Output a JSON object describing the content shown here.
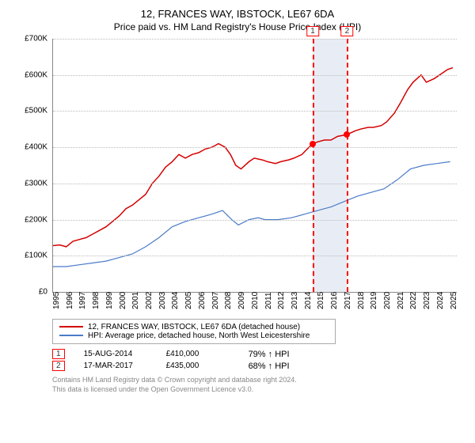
{
  "title": "12, FRANCES WAY, IBSTOCK, LE67 6DA",
  "subtitle": "Price paid vs. HM Land Registry's House Price Index (HPI)",
  "chart": {
    "type": "line",
    "background_color": "#ffffff",
    "grid_color": "#bbbbbb",
    "axis_color": "#888888",
    "label_fontsize": 10,
    "xlim": [
      1995,
      2025.5
    ],
    "ylim": [
      0,
      700000
    ],
    "ytick_step": 100000,
    "yticks": [
      "£0",
      "£100K",
      "£200K",
      "£300K",
      "£400K",
      "£500K",
      "£600K",
      "£700K"
    ],
    "xticks": [
      1995,
      1996,
      1997,
      1998,
      1999,
      2000,
      2001,
      2002,
      2003,
      2004,
      2005,
      2006,
      2007,
      2008,
      2009,
      2010,
      2011,
      2012,
      2013,
      2014,
      2015,
      2016,
      2017,
      2018,
      2019,
      2020,
      2021,
      2022,
      2023,
      2024,
      2025
    ],
    "band": {
      "start": 2014.62,
      "end": 2017.21,
      "color": "#e8edf5"
    },
    "markers": [
      {
        "label": "1",
        "x": 2014.62,
        "y": 410000
      },
      {
        "label": "2",
        "x": 2017.21,
        "y": 435000
      }
    ],
    "series": [
      {
        "name": "12, FRANCES WAY, IBSTOCK, LE67 6DA (detached house)",
        "color": "#d40000",
        "line_width": 1.5,
        "points": [
          [
            1995,
            128000
          ],
          [
            1995.5,
            130000
          ],
          [
            1996,
            125000
          ],
          [
            1996.5,
            140000
          ],
          [
            1997,
            145000
          ],
          [
            1997.5,
            150000
          ],
          [
            1998,
            160000
          ],
          [
            1998.5,
            170000
          ],
          [
            1999,
            180000
          ],
          [
            1999.5,
            195000
          ],
          [
            2000,
            210000
          ],
          [
            2000.5,
            230000
          ],
          [
            2001,
            240000
          ],
          [
            2001.5,
            255000
          ],
          [
            2002,
            270000
          ],
          [
            2002.5,
            300000
          ],
          [
            2003,
            320000
          ],
          [
            2003.5,
            345000
          ],
          [
            2004,
            360000
          ],
          [
            2004.5,
            380000
          ],
          [
            2005,
            370000
          ],
          [
            2005.5,
            380000
          ],
          [
            2006,
            385000
          ],
          [
            2006.5,
            395000
          ],
          [
            2007,
            400000
          ],
          [
            2007.5,
            410000
          ],
          [
            2008,
            400000
          ],
          [
            2008.4,
            380000
          ],
          [
            2008.8,
            350000
          ],
          [
            2009.2,
            340000
          ],
          [
            2009.8,
            360000
          ],
          [
            2010.2,
            370000
          ],
          [
            2010.8,
            365000
          ],
          [
            2011.2,
            360000
          ],
          [
            2011.8,
            355000
          ],
          [
            2012.2,
            360000
          ],
          [
            2012.8,
            365000
          ],
          [
            2013.2,
            370000
          ],
          [
            2013.8,
            380000
          ],
          [
            2014.2,
            395000
          ],
          [
            2014.62,
            410000
          ],
          [
            2015,
            415000
          ],
          [
            2015.5,
            420000
          ],
          [
            2016,
            420000
          ],
          [
            2016.5,
            430000
          ],
          [
            2017.21,
            435000
          ],
          [
            2017.8,
            445000
          ],
          [
            2018.2,
            450000
          ],
          [
            2018.8,
            455000
          ],
          [
            2019.2,
            455000
          ],
          [
            2019.8,
            460000
          ],
          [
            2020.2,
            470000
          ],
          [
            2020.8,
            495000
          ],
          [
            2021.2,
            520000
          ],
          [
            2021.8,
            560000
          ],
          [
            2022.2,
            580000
          ],
          [
            2022.8,
            600000
          ],
          [
            2023.2,
            580000
          ],
          [
            2023.8,
            590000
          ],
          [
            2024.2,
            600000
          ],
          [
            2024.8,
            615000
          ],
          [
            2025.2,
            620000
          ]
        ]
      },
      {
        "name": "HPI: Average price, detached house, North West Leicestershire",
        "color": "#4a7bc8",
        "line_width": 1.2,
        "points": [
          [
            1995,
            70000
          ],
          [
            1996,
            70000
          ],
          [
            1997,
            75000
          ],
          [
            1998,
            80000
          ],
          [
            1999,
            85000
          ],
          [
            2000,
            95000
          ],
          [
            2001,
            105000
          ],
          [
            2002,
            125000
          ],
          [
            2003,
            150000
          ],
          [
            2004,
            180000
          ],
          [
            2005,
            195000
          ],
          [
            2006,
            205000
          ],
          [
            2007,
            215000
          ],
          [
            2007.8,
            225000
          ],
          [
            2008.5,
            200000
          ],
          [
            2009,
            185000
          ],
          [
            2009.8,
            200000
          ],
          [
            2010.5,
            205000
          ],
          [
            2011,
            200000
          ],
          [
            2012,
            200000
          ],
          [
            2013,
            205000
          ],
          [
            2014,
            215000
          ],
          [
            2015,
            225000
          ],
          [
            2016,
            235000
          ],
          [
            2017,
            250000
          ],
          [
            2018,
            265000
          ],
          [
            2019,
            275000
          ],
          [
            2020,
            285000
          ],
          [
            2021,
            310000
          ],
          [
            2022,
            340000
          ],
          [
            2023,
            350000
          ],
          [
            2024,
            355000
          ],
          [
            2025,
            360000
          ]
        ]
      }
    ]
  },
  "data_points": [
    {
      "badge": "1",
      "date": "15-AUG-2014",
      "price": "£410,000",
      "pct": "79% ↑ HPI"
    },
    {
      "badge": "2",
      "date": "17-MAR-2017",
      "price": "£435,000",
      "pct": "68% ↑ HPI"
    }
  ],
  "footer": {
    "line1": "Contains HM Land Registry data © Crown copyright and database right 2024.",
    "line2": "This data is licensed under the Open Government Licence v3.0."
  }
}
